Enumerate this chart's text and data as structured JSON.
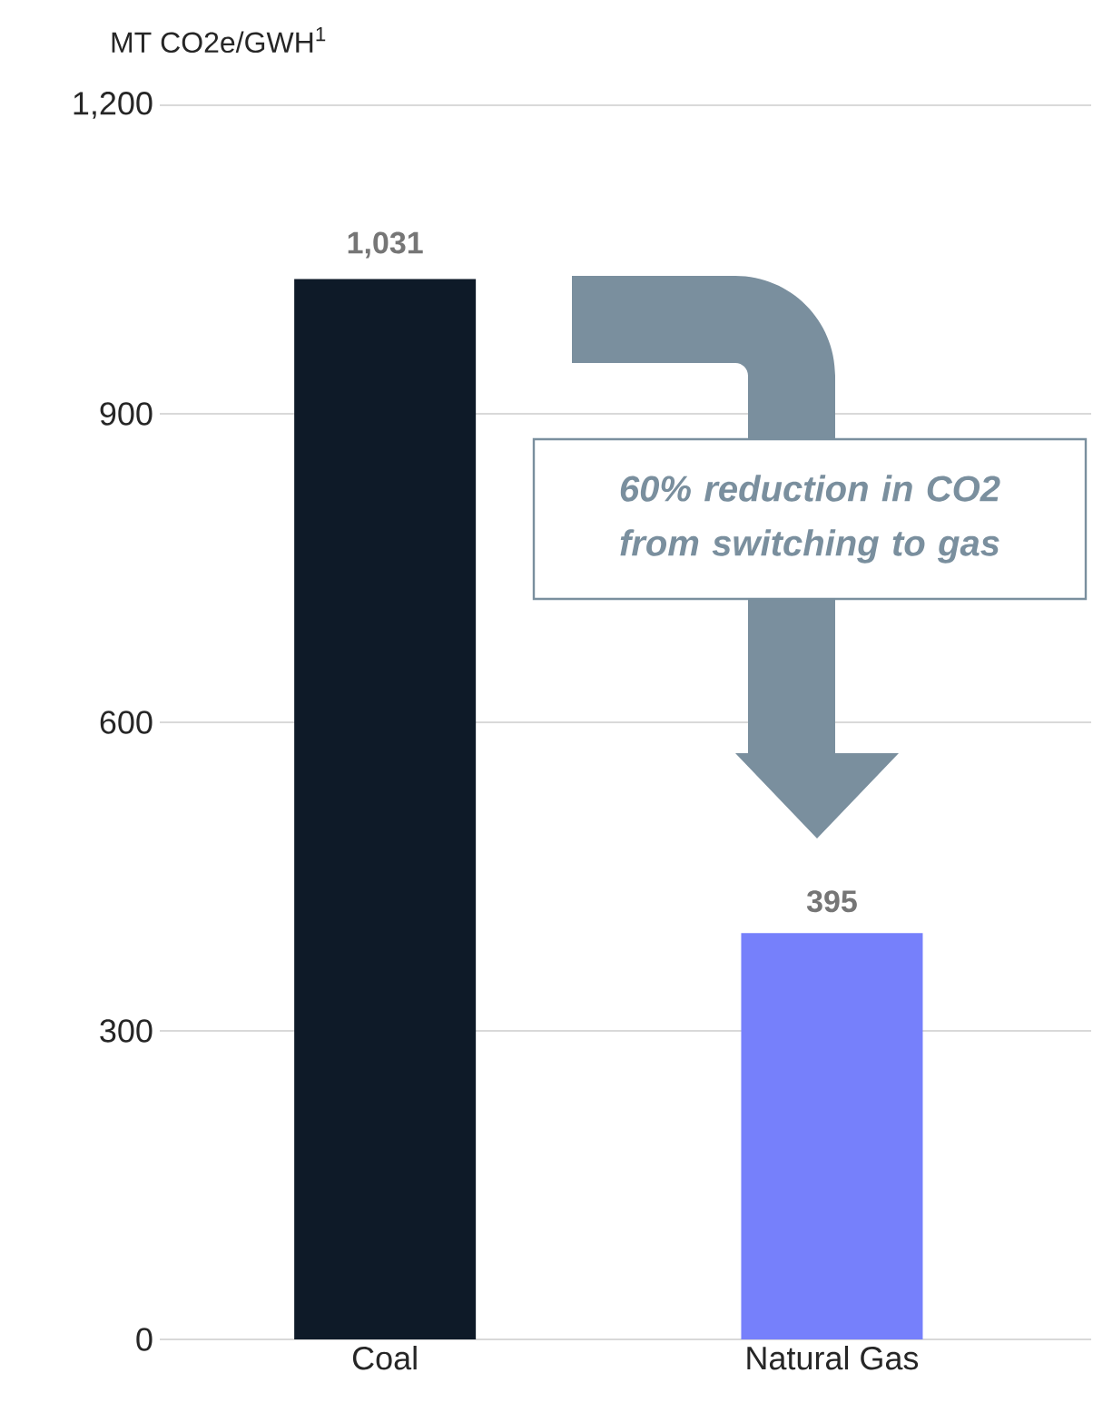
{
  "chart_data": {
    "type": "bar",
    "ylabel": "MT CO2e/GWH$^{1}$",
    "categories": [
      "Coal",
      "Natural Gas"
    ],
    "values": [
      1031,
      395
    ],
    "colors": [
      "#0e1a28",
      "#7680fb"
    ],
    "value_labels": [
      "1,031",
      "395"
    ],
    "ylim": [
      0,
      1200
    ],
    "yticks": [
      0,
      300,
      600,
      900,
      {
        "value": 1200,
        "label": "1,200"
      }
    ],
    "grid": "y",
    "annotations": [
      "60% reduction in CO2 from switching to gas"
    ]
  }
}
